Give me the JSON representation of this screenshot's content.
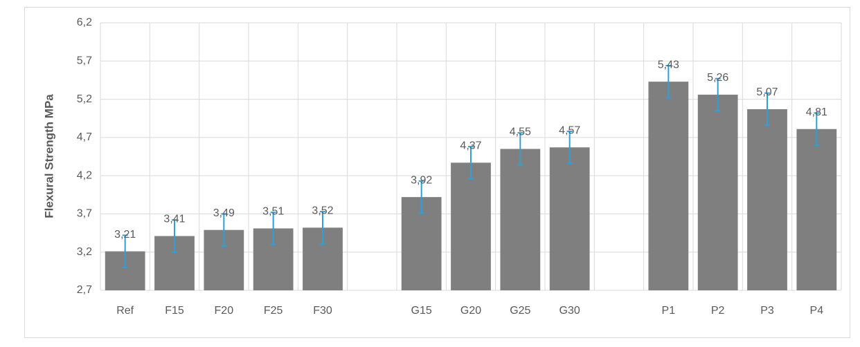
{
  "chart_data": {
    "type": "bar",
    "y_label": "Flexural Strength MPa",
    "categories": [
      "Ref",
      "F15",
      "F20",
      "F25",
      "F30",
      null,
      "G15",
      "G20",
      "G25",
      "G30",
      null,
      "P1",
      "P2",
      "P3",
      "P4"
    ],
    "values": [
      3.21,
      3.41,
      3.49,
      3.51,
      3.52,
      null,
      3.92,
      4.37,
      4.55,
      4.57,
      null,
      5.43,
      5.26,
      5.07,
      4.81
    ],
    "value_labels": [
      "3,21",
      "3,41",
      "3,49",
      "3,51",
      "3,52",
      null,
      "3,92",
      "4,37",
      "4,55",
      "4,57",
      null,
      "5,43",
      "5,26",
      "5,07",
      "4,81"
    ],
    "errors": [
      0.21,
      0.21,
      0.21,
      0.21,
      0.21,
      null,
      0.21,
      0.21,
      0.21,
      0.21,
      null,
      0.21,
      0.21,
      0.21,
      0.21
    ],
    "color": "#7f7f7f",
    "error_color": "#2e9fd8",
    "ylim": [
      2.7,
      6.2
    ],
    "yticks": [
      {
        "value": 2.7,
        "label": "2,7"
      },
      {
        "value": 3.2,
        "label": "3,2"
      },
      {
        "value": 3.7,
        "label": "3,7"
      },
      {
        "value": 4.2,
        "label": "4,2"
      },
      {
        "value": 4.7,
        "label": "4,7"
      },
      {
        "value": 5.2,
        "label": "5,2"
      },
      {
        "value": 5.7,
        "label": "5,7"
      },
      {
        "value": 6.2,
        "label": "6,2"
      }
    ],
    "grid": true
  }
}
